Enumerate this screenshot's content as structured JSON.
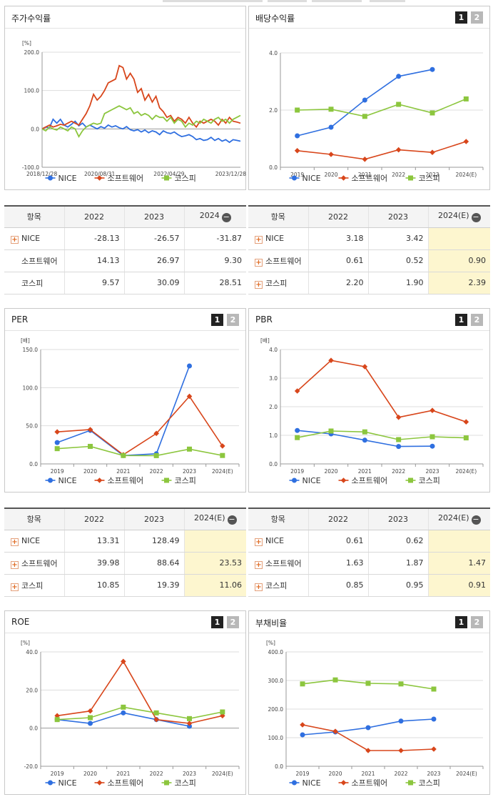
{
  "common": {
    "legend": [
      "NICE",
      "소프트웨어",
      "코스피"
    ]
  },
  "colors": {
    "NICE": "#2f6fe0",
    "소프트웨어": "#d8461b",
    "코스피": "#8cc63e"
  },
  "panels": {
    "stock": {
      "title": "주가수익률",
      "unit": "[%]"
    },
    "dividend": {
      "title": "배당수익률",
      "pager": [
        "1",
        "2"
      ]
    },
    "per": {
      "title": "PER",
      "unit": "[배]",
      "pager": [
        "1",
        "2"
      ]
    },
    "pbr": {
      "title": "PBR",
      "unit": "[배]",
      "pager": [
        "1",
        "2"
      ]
    },
    "roe": {
      "title": "ROE",
      "unit": "[%]",
      "pager": [
        "1",
        "2"
      ]
    },
    "debt": {
      "title": "부채비율",
      "unit": "[%]",
      "pager": [
        "1",
        "2"
      ]
    }
  },
  "tables": {
    "stock": {
      "header": [
        "항목",
        "2022",
        "2023",
        "2024"
      ],
      "rows": [
        {
          "name": "NICE",
          "plus": true,
          "values": [
            "-28.13",
            "-26.57",
            "-31.87"
          ]
        },
        {
          "name": "소프트웨어",
          "plus": false,
          "values": [
            "14.13",
            "26.97",
            "9.30"
          ]
        },
        {
          "name": "코스피",
          "plus": false,
          "values": [
            "9.57",
            "30.09",
            "28.51"
          ]
        }
      ]
    },
    "dividend": {
      "header": [
        "항목",
        "2022",
        "2023",
        "2024(E)"
      ],
      "rows": [
        {
          "name": "NICE",
          "plus": true,
          "values": [
            "3.18",
            "3.42",
            ""
          ]
        },
        {
          "name": "소프트웨어",
          "plus": true,
          "values": [
            "0.61",
            "0.52",
            "0.90"
          ]
        },
        {
          "name": "코스피",
          "plus": true,
          "values": [
            "2.20",
            "1.90",
            "2.39"
          ]
        }
      ]
    },
    "per": {
      "header": [
        "항목",
        "2022",
        "2023",
        "2024(E)"
      ],
      "rows": [
        {
          "name": "NICE",
          "plus": true,
          "values": [
            "13.31",
            "128.49",
            ""
          ]
        },
        {
          "name": "소프트웨어",
          "plus": true,
          "values": [
            "39.98",
            "88.64",
            "23.53"
          ]
        },
        {
          "name": "코스피",
          "plus": true,
          "values": [
            "10.85",
            "19.39",
            "11.06"
          ]
        }
      ]
    },
    "pbr": {
      "header": [
        "항목",
        "2022",
        "2023",
        "2024(E)"
      ],
      "rows": [
        {
          "name": "NICE",
          "plus": true,
          "values": [
            "0.61",
            "0.62",
            ""
          ]
        },
        {
          "name": "소프트웨어",
          "plus": true,
          "values": [
            "1.63",
            "1.87",
            "1.47"
          ]
        },
        {
          "name": "코스피",
          "plus": true,
          "values": [
            "0.85",
            "0.95",
            "0.91"
          ]
        }
      ]
    }
  },
  "chart_data": [
    {
      "id": "stock",
      "type": "line",
      "ylim": [
        -100,
        200
      ],
      "yticks": [
        "200.0",
        "100.0",
        "0.0",
        "-100.0"
      ],
      "x_ticks": [
        "2018/12/28",
        "2020/08/31",
        "2022/04/29",
        "2023/12/28"
      ],
      "x": [
        "2018-12-28",
        "2019-02-28",
        "2019-04-30",
        "2019-06-28",
        "2019-08-30",
        "2019-10-31",
        "2019-12-30",
        "2020-02-28",
        "2020-03-31",
        "2020-04-29",
        "2020-05-29",
        "2020-06-30",
        "2020-07-31",
        "2020-08-31",
        "2020-09-29",
        "2020-10-30",
        "2020-11-30",
        "2020-12-30",
        "2021-01-29",
        "2021-02-26",
        "2021-03-31",
        "2021-04-30",
        "2021-05-31",
        "2021-06-30",
        "2021-07-30",
        "2021-08-31",
        "2021-09-30",
        "2021-10-29",
        "2021-11-30",
        "2021-12-30",
        "2022-01-28",
        "2022-02-28",
        "2022-03-31",
        "2022-04-29",
        "2022-05-31",
        "2022-06-30",
        "2022-07-29",
        "2022-08-31",
        "2022-09-30",
        "2022-10-31",
        "2022-11-30",
        "2022-12-29",
        "2023-01-31",
        "2023-02-28",
        "2023-03-31",
        "2023-04-28",
        "2023-05-31",
        "2023-06-30",
        "2023-07-31",
        "2023-08-31",
        "2023-09-27",
        "2023-10-31",
        "2023-11-30",
        "2023-12-28",
        "2024-01-31"
      ],
      "series": [
        {
          "name": "NICE",
          "values": [
            0,
            5,
            3,
            25,
            15,
            25,
            10,
            5,
            12,
            20,
            8,
            15,
            5,
            10,
            5,
            0,
            6,
            2,
            10,
            5,
            8,
            3,
            0,
            6,
            -2,
            -5,
            -2,
            -8,
            -3,
            -10,
            -5,
            -8,
            -15,
            -5,
            -10,
            -12,
            -8,
            -15,
            -20,
            -18,
            -15,
            -20,
            -28,
            -25,
            -30,
            -28,
            -22,
            -30,
            -25,
            -32,
            -28,
            -35,
            -28,
            -30,
            -32
          ],
          "labels": [
            "2018-12",
            "2019-02"
          ]
        },
        {
          "name": "소프트웨어",
          "values": [
            0,
            5,
            10,
            5,
            8,
            12,
            10,
            15,
            20,
            15,
            10,
            25,
            40,
            60,
            90,
            75,
            85,
            100,
            120,
            125,
            130,
            165,
            160,
            130,
            145,
            130,
            95,
            105,
            75,
            90,
            70,
            85,
            55,
            45,
            30,
            35,
            20,
            30,
            25,
            15,
            30,
            15,
            5,
            20,
            15,
            20,
            25,
            20,
            10,
            25,
            15,
            30,
            20,
            18,
            15
          ]
        },
        {
          "name": "코스피",
          "values": [
            0,
            -5,
            5,
            0,
            -3,
            5,
            0,
            -5,
            5,
            0,
            -20,
            -5,
            5,
            10,
            15,
            12,
            15,
            40,
            45,
            50,
            55,
            60,
            55,
            50,
            55,
            40,
            45,
            35,
            40,
            35,
            25,
            35,
            30,
            30,
            20,
            30,
            15,
            25,
            20,
            5,
            15,
            10,
            20,
            15,
            25,
            20,
            15,
            25,
            30,
            20,
            25,
            15,
            25,
            30,
            35
          ]
        }
      ]
    },
    {
      "id": "dividend",
      "type": "line",
      "ylim": [
        0,
        4
      ],
      "yticks": [
        "4.0",
        "2.0",
        "0.0"
      ],
      "categories": [
        "2019",
        "2020",
        "2021",
        "2022",
        "2023",
        "2024(E)"
      ],
      "series": [
        {
          "name": "NICE",
          "values": [
            1.1,
            1.4,
            2.35,
            3.18,
            3.42,
            null
          ]
        },
        {
          "name": "소프트웨어",
          "values": [
            0.58,
            0.45,
            0.28,
            0.61,
            0.52,
            0.9
          ]
        },
        {
          "name": "코스피",
          "values": [
            2.0,
            2.03,
            1.78,
            2.2,
            1.9,
            2.39
          ]
        }
      ]
    },
    {
      "id": "per",
      "type": "line",
      "ylim": [
        0,
        150
      ],
      "yticks": [
        "150.0",
        "100.0",
        "50.0",
        "0.0"
      ],
      "categories": [
        "2019",
        "2020",
        "2021",
        "2022",
        "2023",
        "2024(E)"
      ],
      "series": [
        {
          "name": "NICE",
          "values": [
            28,
            44,
            11,
            13.31,
            128.49,
            null
          ]
        },
        {
          "name": "소프트웨어",
          "values": [
            42,
            45,
            12,
            39.98,
            88.64,
            23.53
          ]
        },
        {
          "name": "코스피",
          "values": [
            20,
            23,
            11,
            10.85,
            19.39,
            11.06
          ]
        }
      ]
    },
    {
      "id": "pbr",
      "type": "line",
      "ylim": [
        0,
        4
      ],
      "yticks": [
        "4.0",
        "3.0",
        "2.0",
        "1.0",
        "0.0"
      ],
      "categories": [
        "2019",
        "2020",
        "2021",
        "2022",
        "2023",
        "2024(E)"
      ],
      "series": [
        {
          "name": "NICE",
          "values": [
            1.17,
            1.05,
            0.83,
            0.61,
            0.62,
            null
          ]
        },
        {
          "name": "소프트웨어",
          "values": [
            2.55,
            3.62,
            3.4,
            1.63,
            1.87,
            1.47
          ]
        },
        {
          "name": "코스피",
          "values": [
            0.92,
            1.15,
            1.12,
            0.85,
            0.95,
            0.91
          ]
        }
      ]
    },
    {
      "id": "roe",
      "type": "line",
      "ylim": [
        -20,
        40
      ],
      "yticks": [
        "40.0",
        "20.0",
        "0.0",
        "-20.0"
      ],
      "categories": [
        "2019",
        "2020",
        "2021",
        "2022",
        "2023",
        "2024(E)"
      ],
      "series": [
        {
          "name": "NICE",
          "values": [
            4.5,
            2.5,
            8,
            4.5,
            1,
            null
          ]
        },
        {
          "name": "소프트웨어",
          "values": [
            6.5,
            9,
            35,
            4.5,
            2.5,
            6.5
          ]
        },
        {
          "name": "코스피",
          "values": [
            4.5,
            5.5,
            11,
            8,
            5,
            8.5
          ]
        }
      ]
    },
    {
      "id": "debt",
      "type": "line",
      "ylim": [
        0,
        400
      ],
      "yticks": [
        "400.0",
        "300.0",
        "200.0",
        "100.0",
        "0.0"
      ],
      "categories": [
        "2019",
        "2020",
        "2021",
        "2022",
        "2023",
        "2024(E)"
      ],
      "series": [
        {
          "name": "NICE",
          "values": [
            110,
            120,
            135,
            158,
            165,
            null
          ]
        },
        {
          "name": "소프트웨어",
          "values": [
            145,
            122,
            55,
            55,
            60,
            null
          ]
        },
        {
          "name": "코스피",
          "values": [
            288,
            302,
            290,
            288,
            270,
            null
          ]
        }
      ]
    }
  ]
}
